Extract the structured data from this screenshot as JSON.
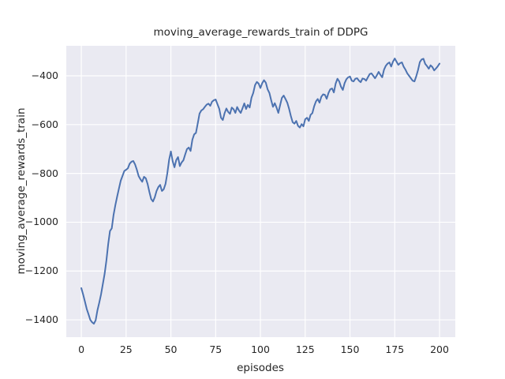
{
  "chart_data": {
    "type": "line",
    "title": "moving_average_rewards_train of DDPG",
    "xlabel": "episodes",
    "ylabel": "moving_average_rewards_train",
    "style": "seaborn-darkgrid",
    "grid": true,
    "legend_position": "none",
    "x_tick_labels": [
      "0",
      "25",
      "50",
      "75",
      "100",
      "125",
      "150",
      "175",
      "200"
    ],
    "x_tick_values": [
      0,
      25,
      50,
      75,
      100,
      125,
      150,
      175,
      200
    ],
    "y_tick_labels": [
      "−400",
      "−600",
      "−800",
      "−1000",
      "−1200",
      "−1400"
    ],
    "y_tick_values": [
      -400,
      -600,
      -800,
      -1000,
      -1200,
      -1400
    ],
    "xlim": [
      -8.4,
      208.8
    ],
    "ylim": [
      -1471,
      -277
    ],
    "colors": {
      "line": "#4c72b0",
      "plot_background": "#eaeaf2",
      "gridline": "#ffffff",
      "text": "#262626",
      "figure_background": "#ffffff"
    },
    "series": [
      {
        "name": "DDPG",
        "x_start": 0,
        "x_step": 1,
        "values": [
          -1270,
          -1296,
          -1325,
          -1355,
          -1377,
          -1400,
          -1410,
          -1416,
          -1402,
          -1361,
          -1330,
          -1296,
          -1254,
          -1212,
          -1157,
          -1090,
          -1036,
          -1025,
          -970,
          -930,
          -895,
          -862,
          -830,
          -810,
          -790,
          -785,
          -779,
          -760,
          -752,
          -749,
          -763,
          -785,
          -811,
          -824,
          -834,
          -814,
          -820,
          -843,
          -876,
          -905,
          -915,
          -898,
          -872,
          -856,
          -847,
          -872,
          -865,
          -843,
          -800,
          -745,
          -710,
          -750,
          -775,
          -745,
          -733,
          -770,
          -755,
          -746,
          -722,
          -700,
          -694,
          -708,
          -662,
          -640,
          -634,
          -595,
          -555,
          -542,
          -537,
          -527,
          -518,
          -514,
          -523,
          -506,
          -500,
          -497,
          -516,
          -535,
          -572,
          -581,
          -553,
          -534,
          -548,
          -556,
          -530,
          -537,
          -552,
          -528,
          -542,
          -552,
          -533,
          -513,
          -536,
          -519,
          -530,
          -490,
          -470,
          -438,
          -425,
          -432,
          -450,
          -430,
          -418,
          -428,
          -455,
          -470,
          -500,
          -527,
          -512,
          -530,
          -552,
          -520,
          -490,
          -481,
          -495,
          -510,
          -535,
          -565,
          -590,
          -596,
          -585,
          -605,
          -612,
          -598,
          -607,
          -578,
          -572,
          -585,
          -560,
          -553,
          -525,
          -505,
          -495,
          -510,
          -486,
          -476,
          -478,
          -494,
          -470,
          -455,
          -452,
          -468,
          -432,
          -412,
          -423,
          -445,
          -458,
          -430,
          -414,
          -406,
          -403,
          -420,
          -423,
          -412,
          -410,
          -420,
          -426,
          -411,
          -413,
          -420,
          -406,
          -393,
          -390,
          -400,
          -410,
          -398,
          -384,
          -396,
          -406,
          -375,
          -359,
          -350,
          -345,
          -362,
          -342,
          -329,
          -342,
          -355,
          -348,
          -345,
          -363,
          -375,
          -390,
          -400,
          -410,
          -420,
          -423,
          -402,
          -376,
          -344,
          -333,
          -330,
          -351,
          -360,
          -371,
          -357,
          -364,
          -378,
          -370,
          -361,
          -350
        ]
      }
    ]
  }
}
